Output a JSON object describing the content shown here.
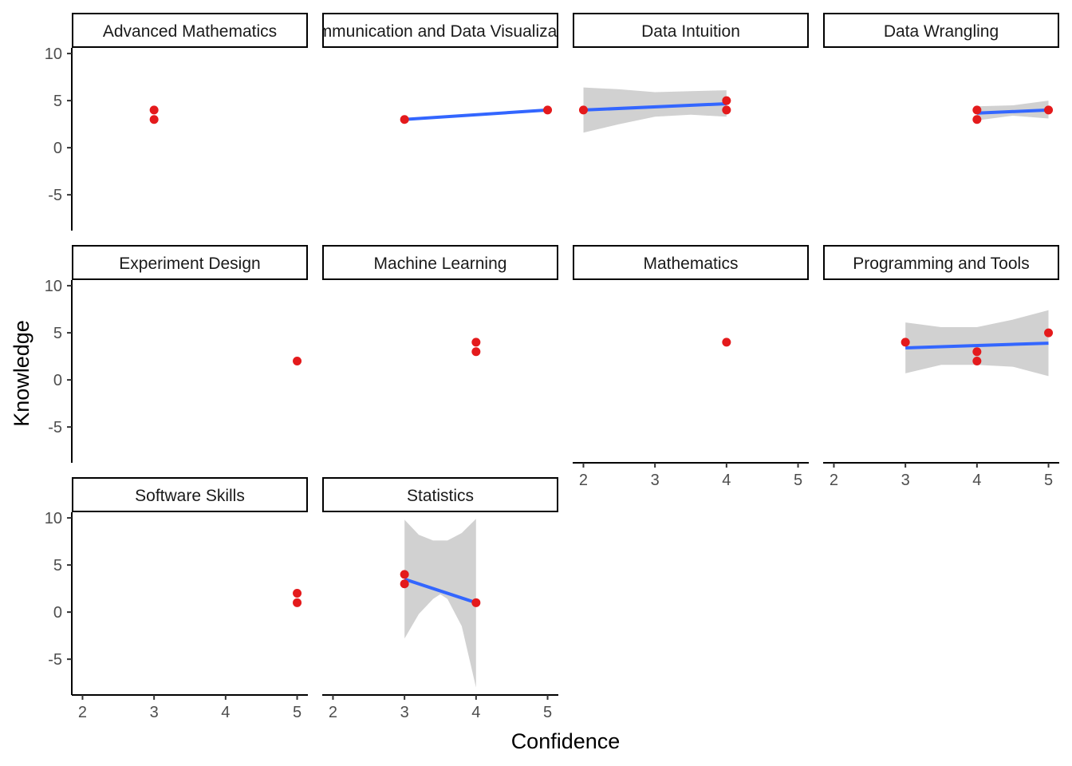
{
  "chart_data": {
    "type": "scatter",
    "xlabel": "Confidence",
    "ylabel": "Knowledge",
    "xlim": [
      1.85,
      5.15
    ],
    "ylim": [
      -8.8,
      10.6
    ],
    "x_ticks": [
      2,
      3,
      4,
      5
    ],
    "y_ticks": [
      -5,
      0,
      5,
      10
    ],
    "y_tick_labels": [
      "-5",
      "0",
      "5",
      "10"
    ],
    "grid": false,
    "colors": {
      "points": "#e41a1c",
      "fit_line": "#3366ff",
      "ribbon": "#cccccc"
    },
    "panels": [
      {
        "name": "Advanced Mathematics",
        "points": [
          [
            3,
            4
          ],
          [
            3,
            3
          ]
        ],
        "fit": null,
        "ribbon": null
      },
      {
        "name": "Communication and Data Visualization",
        "points": [
          [
            3,
            3
          ],
          [
            5,
            4
          ]
        ],
        "fit": [
          [
            3,
            3
          ],
          [
            5,
            4
          ]
        ],
        "ribbon": null
      },
      {
        "name": "Data Intuition",
        "points": [
          [
            2,
            4
          ],
          [
            4,
            5
          ],
          [
            4,
            4
          ]
        ],
        "fit": [
          [
            2,
            4
          ],
          [
            4,
            4.67
          ]
        ],
        "ribbon": [
          [
            2,
            1.6,
            6.4
          ],
          [
            2.5,
            2.5,
            6.2
          ],
          [
            3,
            3.3,
            5.9
          ],
          [
            3.5,
            3.5,
            6.0
          ],
          [
            4,
            3.3,
            6.1
          ]
        ]
      },
      {
        "name": "Data Wrangling",
        "points": [
          [
            4,
            4
          ],
          [
            4,
            3
          ],
          [
            5,
            4
          ]
        ],
        "fit": [
          [
            4,
            3.67
          ],
          [
            5,
            4
          ]
        ],
        "ribbon": [
          [
            4,
            2.9,
            4.4
          ],
          [
            4.5,
            3.4,
            4.5
          ],
          [
            5,
            3.1,
            5.0
          ]
        ]
      },
      {
        "name": "Experiment Design",
        "points": [
          [
            5,
            2
          ]
        ],
        "fit": null,
        "ribbon": null
      },
      {
        "name": "Machine Learning",
        "points": [
          [
            4,
            4
          ],
          [
            4,
            3
          ]
        ],
        "fit": null,
        "ribbon": null
      },
      {
        "name": "Mathematics",
        "points": [
          [
            4,
            4
          ]
        ],
        "fit": null,
        "ribbon": null
      },
      {
        "name": "Programming and Tools",
        "points": [
          [
            3,
            4
          ],
          [
            4,
            3
          ],
          [
            4,
            2
          ],
          [
            5,
            5
          ]
        ],
        "fit": [
          [
            3,
            3.4
          ],
          [
            5,
            3.9
          ]
        ],
        "ribbon": [
          [
            3,
            0.7,
            6.1
          ],
          [
            3.5,
            1.6,
            5.6
          ],
          [
            4,
            1.6,
            5.6
          ],
          [
            4.5,
            1.4,
            6.4
          ],
          [
            5,
            0.4,
            7.4
          ]
        ]
      },
      {
        "name": "Software Skills",
        "points": [
          [
            5,
            2
          ],
          [
            5,
            1
          ]
        ],
        "fit": null,
        "ribbon": null
      },
      {
        "name": "Statistics",
        "points": [
          [
            3,
            4
          ],
          [
            3,
            3
          ],
          [
            4,
            1
          ]
        ],
        "fit": [
          [
            3,
            3.5
          ],
          [
            4,
            1
          ]
        ],
        "ribbon": [
          [
            3,
            -2.8,
            9.8
          ],
          [
            3.2,
            -0.2,
            8.2
          ],
          [
            3.4,
            1.4,
            7.6
          ],
          [
            3.5,
            1.9,
            7.6
          ],
          [
            3.6,
            1.4,
            7.6
          ],
          [
            3.8,
            -1.5,
            8.4
          ],
          [
            4,
            -8.0,
            9.9
          ]
        ]
      }
    ]
  }
}
